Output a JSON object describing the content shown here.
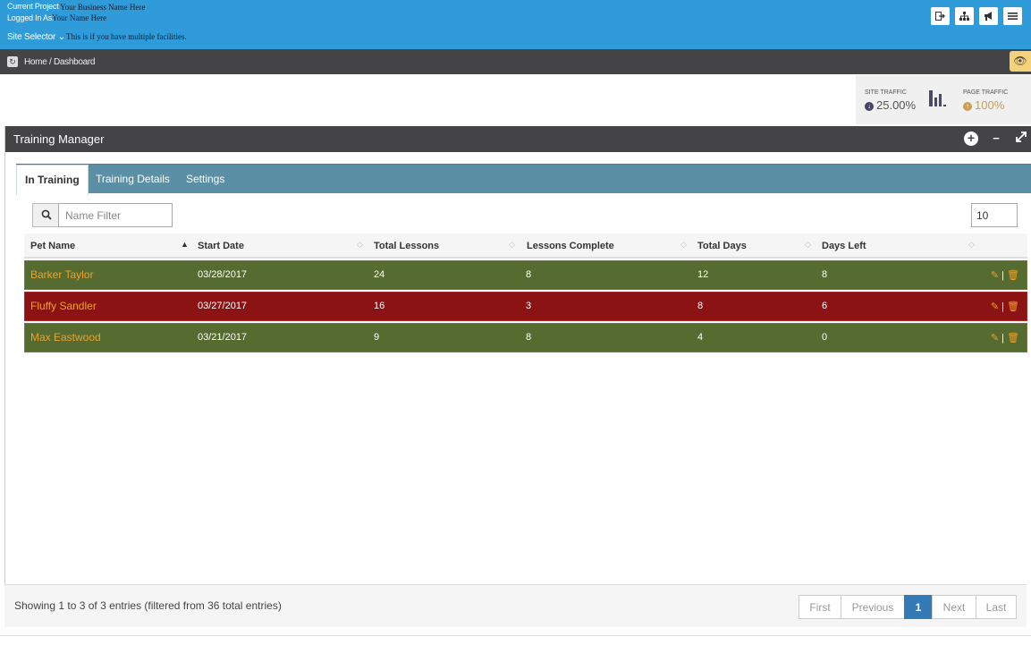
{
  "header": {
    "current_project_label": "Current Project",
    "current_project_value": "Your Business Name Here",
    "logged_in_label": "Logged In As:",
    "logged_in_value": "Your Name Here",
    "site_selector_label": "Site Selector",
    "site_selector_value": "This is if you have multiple facilities.",
    "icons": [
      "sign-out-icon",
      "sitemap-icon",
      "bullhorn-icon",
      "menu-icon"
    ]
  },
  "breadcrumb": {
    "home": "Home",
    "separator": "/",
    "current": "Dashboard"
  },
  "stats": {
    "site_traffic_label": "SITE TRAFFIC",
    "site_traffic_value": "25.00%",
    "page_traffic_label": "PAGE TRAFFIC",
    "page_traffic_value": "100%",
    "colors": {
      "down": "#444466",
      "up": "#c8a050"
    }
  },
  "panel": {
    "title": "Training Manager",
    "tabs": [
      {
        "label": "In Training",
        "active": true
      },
      {
        "label": "Training Details",
        "active": false
      },
      {
        "label": "Settings",
        "active": false
      }
    ]
  },
  "filter": {
    "placeholder": "Name Filter",
    "value": "",
    "page_size": "10"
  },
  "table": {
    "columns": [
      "Pet Name",
      "Start Date",
      "Total Lessons",
      "Lessons Complete",
      "Total Days",
      "Days Left"
    ],
    "rows": [
      {
        "name": "Barker Taylor",
        "start": "03/28/2017",
        "total_lessons": "24",
        "complete": "8",
        "total_days": "12",
        "days_left": "8",
        "status": "green"
      },
      {
        "name": "Fluffy Sandler",
        "start": "03/27/2017",
        "total_lessons": "16",
        "complete": "3",
        "total_days": "8",
        "days_left": "6",
        "status": "red"
      },
      {
        "name": "Max Eastwood",
        "start": "03/21/2017",
        "total_lessons": "9",
        "complete": "8",
        "total_days": "4",
        "days_left": "0",
        "status": "green"
      }
    ],
    "action_separator": "|"
  },
  "footer": {
    "info": "Showing 1 to 3 of 3 entries (filtered from 36 total entries)",
    "pager": {
      "first": "First",
      "previous": "Previous",
      "current": "1",
      "next": "Next",
      "last": "Last"
    }
  }
}
